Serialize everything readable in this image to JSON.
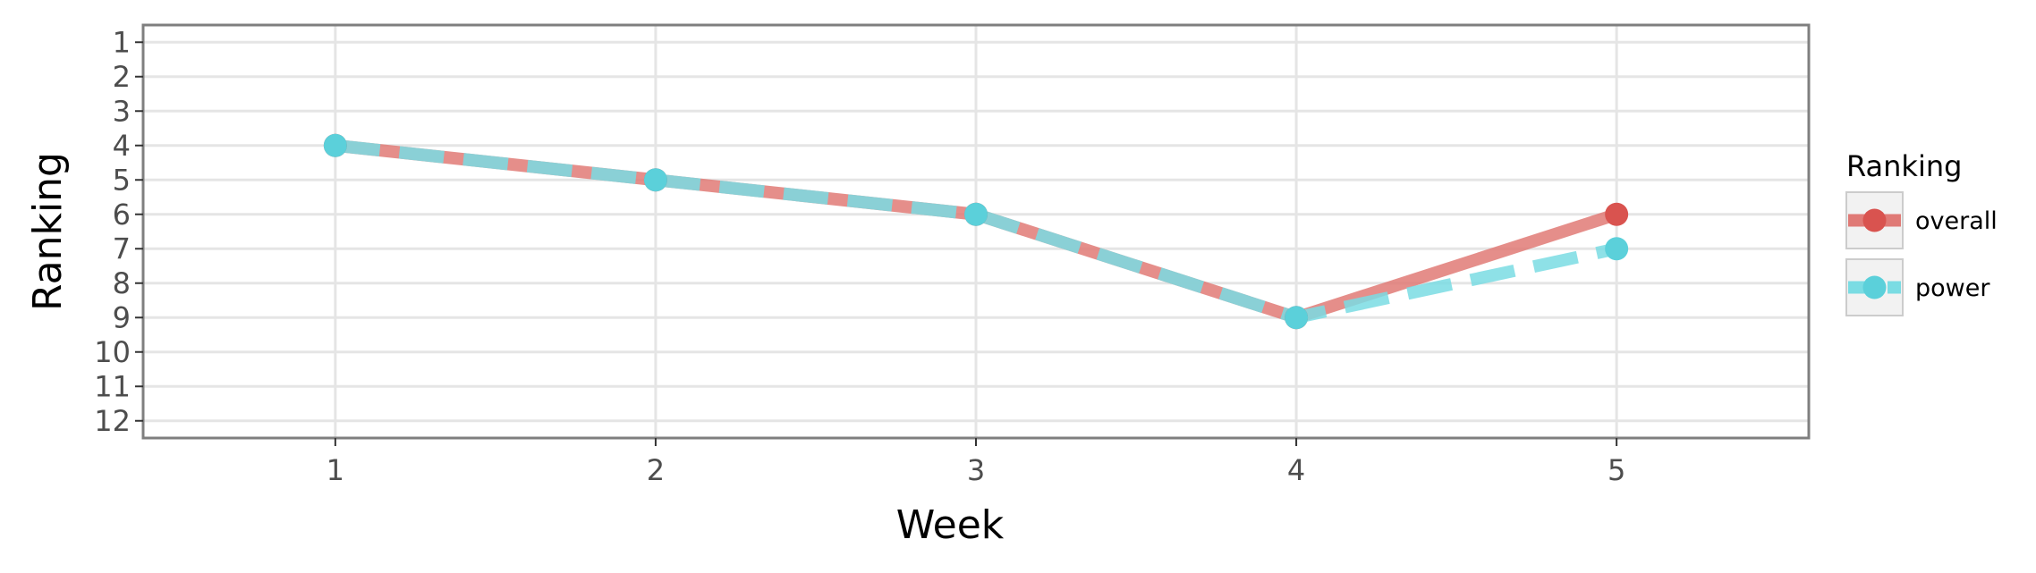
{
  "chart_data": {
    "type": "line",
    "xlabel": "Week",
    "ylabel": "Ranking",
    "x": [
      1,
      2,
      3,
      4,
      5
    ],
    "x_ticks": [
      1,
      2,
      3,
      4,
      5
    ],
    "x_tick_labels": [
      "1",
      "2",
      "3",
      "4",
      "5"
    ],
    "xlim": [
      0.4,
      5.6
    ],
    "y_ticks": [
      1,
      2,
      3,
      4,
      5,
      6,
      7,
      8,
      9,
      10,
      11,
      12
    ],
    "y_tick_labels": [
      "1",
      "2",
      "3",
      "4",
      "5",
      "6",
      "7",
      "8",
      "9",
      "10",
      "11",
      "12"
    ],
    "ylim": [
      0.5,
      12.5
    ],
    "y_reversed": true,
    "grid": true,
    "legend_placement": "right",
    "legend_title": "Ranking",
    "series": [
      {
        "name": "overall",
        "values": [
          4,
          5,
          6,
          9,
          6
        ],
        "color": "#E07A76",
        "marker_color": "#D9534F",
        "line_style": "solid"
      },
      {
        "name": "power",
        "values": [
          4,
          5,
          6,
          9,
          7
        ],
        "color": "#7ADCE3",
        "marker_color": "#5BD0DA",
        "line_style": "dashed"
      }
    ]
  }
}
